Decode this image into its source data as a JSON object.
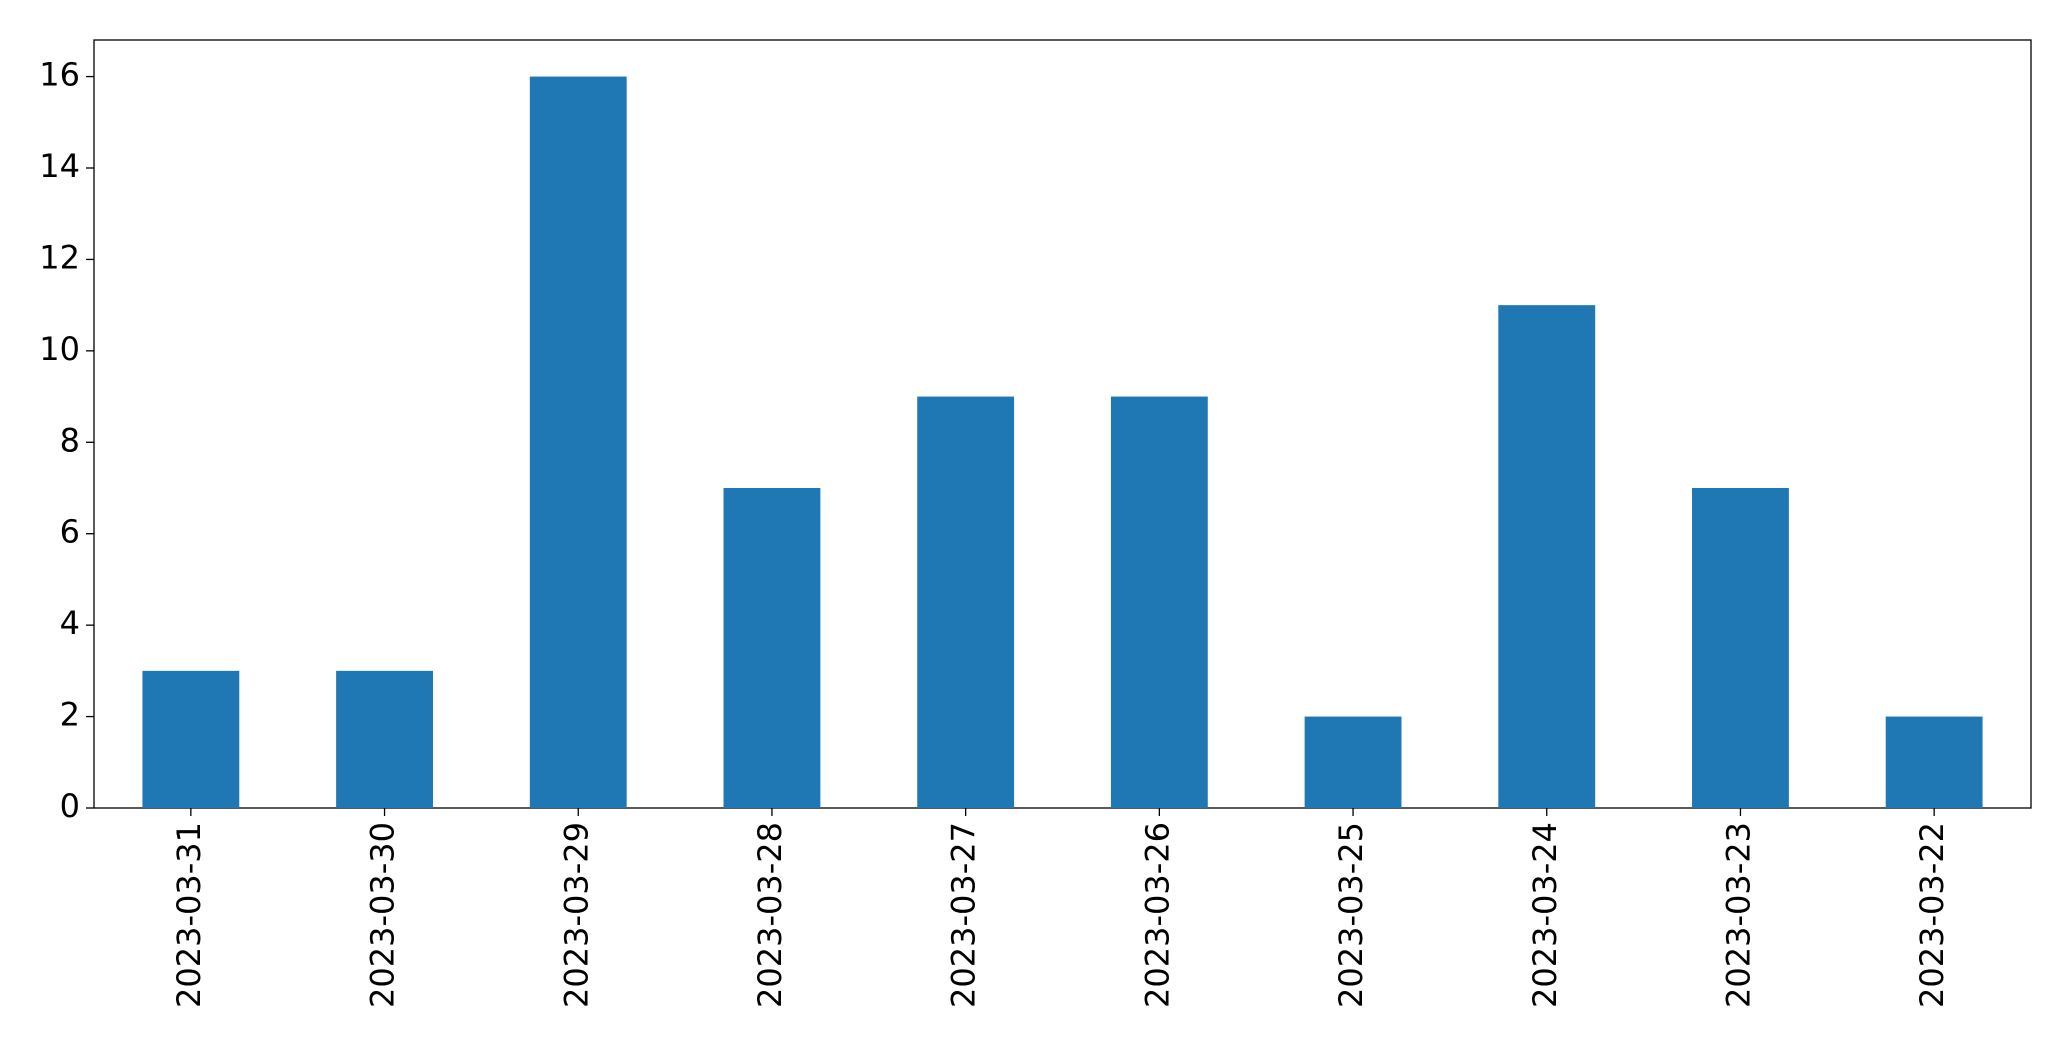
{
  "chart_data": {
    "type": "bar",
    "categories": [
      "2023-03-31",
      "2023-03-30",
      "2023-03-29",
      "2023-03-28",
      "2023-03-27",
      "2023-03-26",
      "2023-03-25",
      "2023-03-24",
      "2023-03-23",
      "2023-03-22"
    ],
    "values": [
      3,
      3,
      16,
      7,
      9,
      9,
      2,
      11,
      7,
      2
    ],
    "color": "#1f77b4",
    "ylim": [
      0,
      16.8
    ],
    "yticks": [
      0,
      2,
      4,
      6,
      8,
      10,
      12,
      14,
      16
    ],
    "grid": false
  }
}
